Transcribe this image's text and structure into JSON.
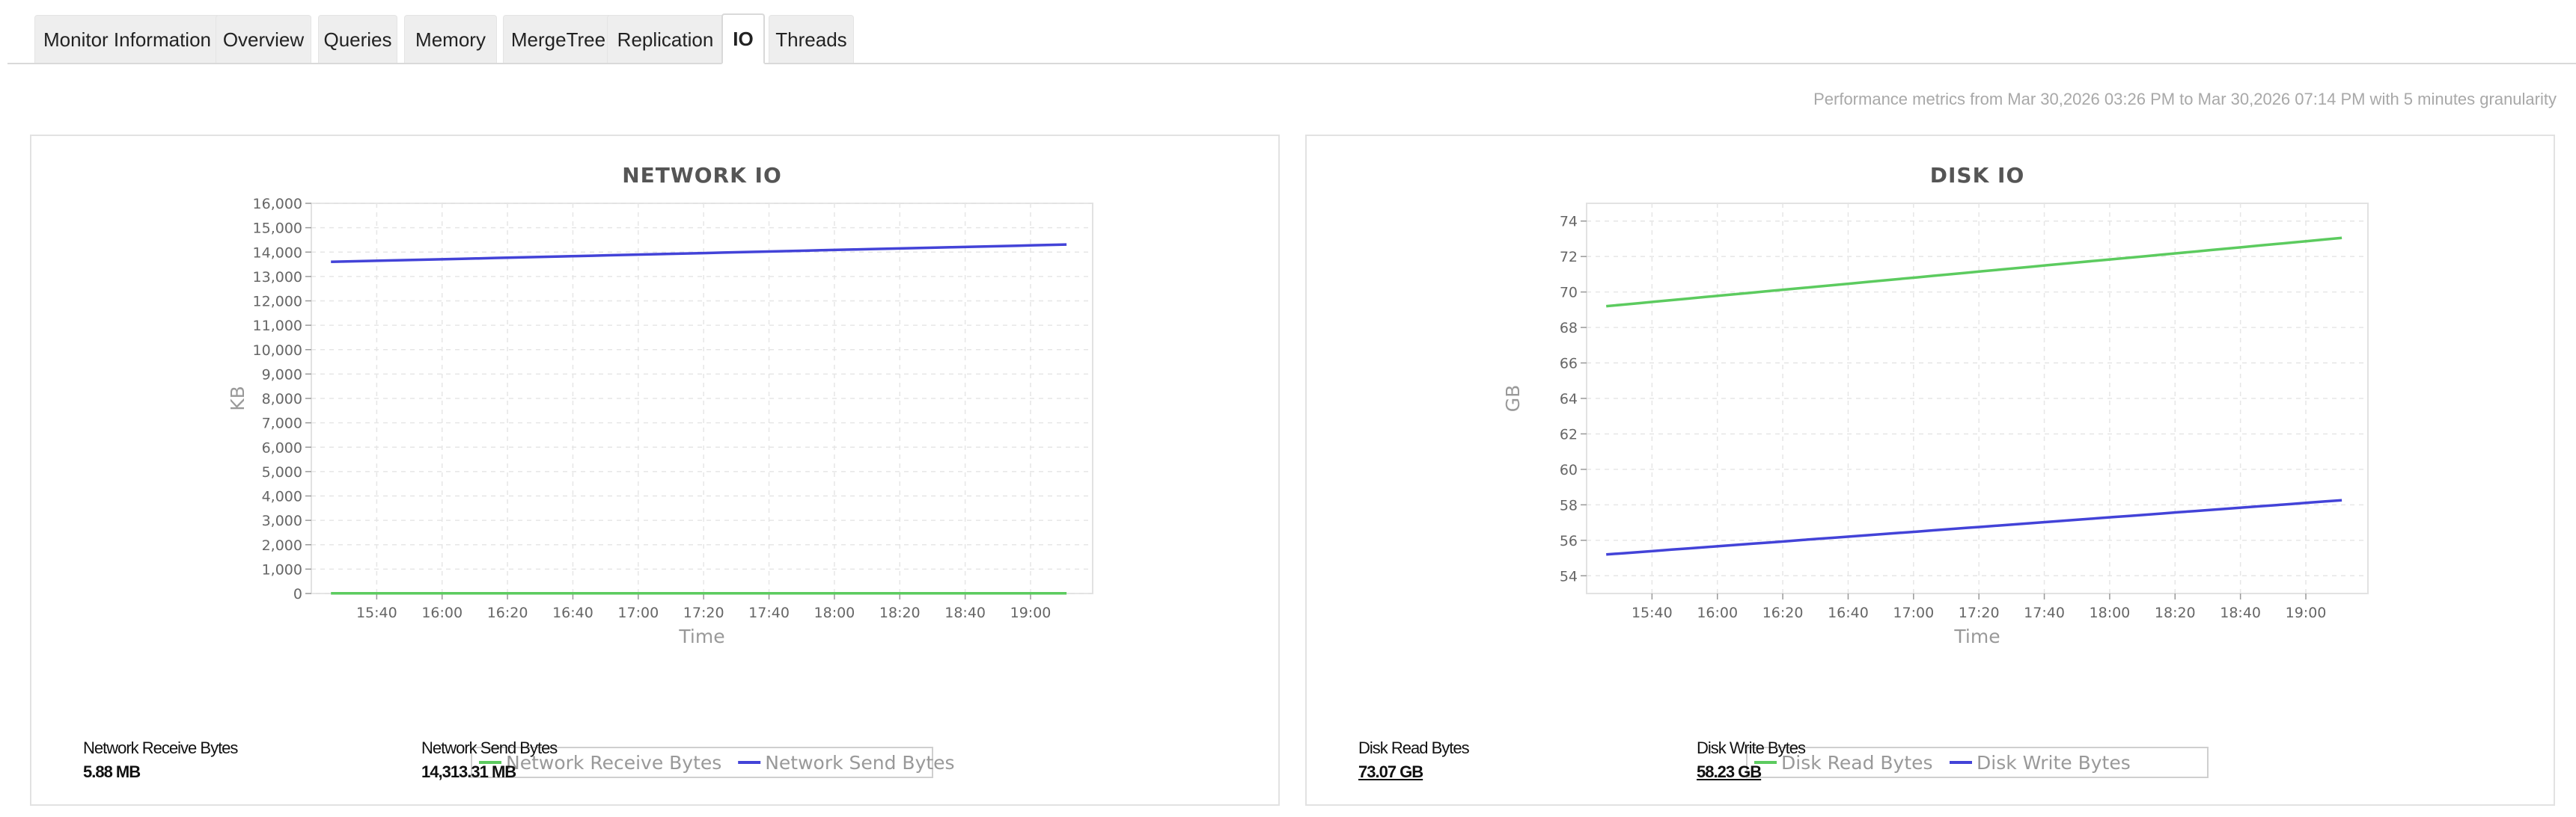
{
  "tabs": [
    {
      "label": "Monitor Information",
      "active": false
    },
    {
      "label": "Overview",
      "active": false
    },
    {
      "label": "Queries",
      "active": false
    },
    {
      "label": "Memory",
      "active": false
    },
    {
      "label": "MergeTree",
      "active": false
    },
    {
      "label": "Replication",
      "active": false
    },
    {
      "label": "IO",
      "active": true
    },
    {
      "label": "Threads",
      "active": false
    }
  ],
  "perf_caption": "Performance metrics from Mar 30,2026 03:26 PM to Mar 30,2026 07:14 PM with 5 minutes granularity",
  "network_stats": {
    "receive_label": "Network Receive Bytes",
    "receive_value": "5.88 MB",
    "send_label": "Network Send Bytes",
    "send_value": "14,313.31 MB"
  },
  "disk_stats": {
    "read_label": "Disk Read Bytes",
    "read_value": "73.07 GB",
    "write_label": "Disk Write Bytes",
    "write_value": "58.23 GB"
  },
  "chart_data": [
    {
      "type": "line",
      "title": "NETWORK IO",
      "xlabel": "Time",
      "ylabel": "KB",
      "ylim": [
        0,
        16000
      ],
      "yticks": [
        "0",
        "1,000",
        "2,000",
        "3,000",
        "4,000",
        "5,000",
        "6,000",
        "7,000",
        "8,000",
        "9,000",
        "10,000",
        "11,000",
        "12,000",
        "13,000",
        "14,000",
        "15,000",
        "16,000"
      ],
      "xticks": [
        "15:40",
        "16:00",
        "16:20",
        "16:40",
        "17:00",
        "17:20",
        "17:40",
        "18:00",
        "18:20",
        "18:40",
        "19:00"
      ],
      "x_start": "15:26",
      "x_end": "19:14",
      "grid": true,
      "legend": "bottom",
      "series": [
        {
          "name": "Network Receive Bytes",
          "color": "#5ccb5f",
          "start": 10,
          "end": 10
        },
        {
          "name": "Network Send Bytes",
          "color": "#4343d8",
          "start": 13600,
          "end": 14320
        }
      ]
    },
    {
      "type": "line",
      "title": "DISK IO",
      "xlabel": "Time",
      "ylabel": "GB",
      "ylim": [
        53,
        75
      ],
      "yticks": [
        "54",
        "56",
        "58",
        "60",
        "62",
        "64",
        "66",
        "68",
        "70",
        "72",
        "74"
      ],
      "xticks": [
        "15:40",
        "16:00",
        "16:20",
        "16:40",
        "17:00",
        "17:20",
        "17:40",
        "18:00",
        "18:20",
        "18:40",
        "19:00"
      ],
      "x_start": "15:26",
      "x_end": "19:14",
      "grid": true,
      "legend": "bottom",
      "series": [
        {
          "name": "Disk Read Bytes",
          "color": "#5ccb5f",
          "start": 69.2,
          "end": 73.1
        },
        {
          "name": "Disk Write Bytes",
          "color": "#4343d8",
          "start": 55.2,
          "end": 58.3
        }
      ]
    }
  ]
}
